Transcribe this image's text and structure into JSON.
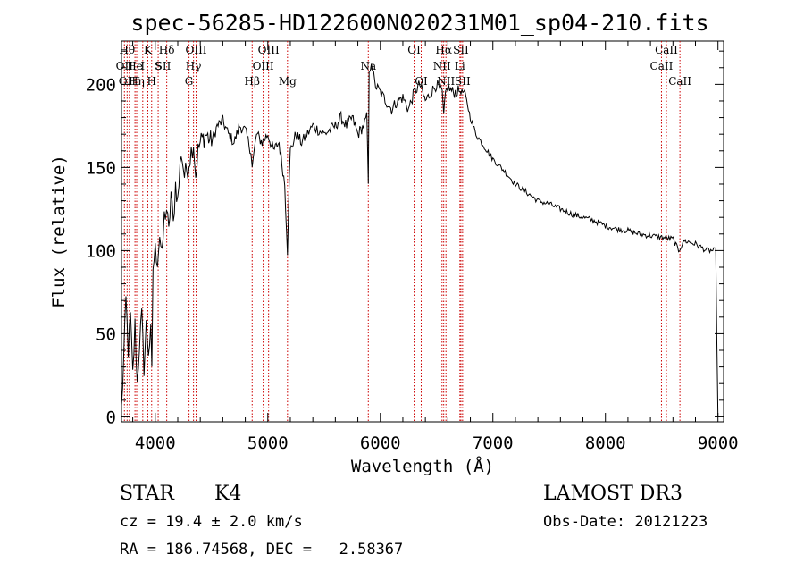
{
  "chart_data": {
    "type": "line",
    "title": "spec-56285-HD122600N020231M01_sp04-210.fits",
    "xlabel": "Wavelength (Å)",
    "ylabel": "Flux (relative)",
    "xlim": [
      3700,
      9050
    ],
    "ylim": [
      -3,
      226
    ],
    "xticks": [
      4000,
      5000,
      6000,
      7000,
      8000,
      9000
    ],
    "yticks": [
      0,
      50,
      100,
      150,
      200
    ],
    "grid": false,
    "series": [
      {
        "line_color": "#000000",
        "x": [
          3700,
          3720,
          3740,
          3760,
          3780,
          3800,
          3820,
          3840,
          3860,
          3880,
          3900,
          3920,
          3940,
          3960,
          3970,
          3980,
          4000,
          4020,
          4040,
          4060,
          4080,
          4100,
          4120,
          4140,
          4160,
          4180,
          4200,
          4230,
          4260,
          4290,
          4320,
          4340,
          4360,
          4380,
          4400,
          4450,
          4500,
          4550,
          4600,
          4650,
          4700,
          4750,
          4800,
          4850,
          4861,
          4900,
          4950,
          5000,
          5050,
          5100,
          5150,
          5175,
          5185,
          5200,
          5250,
          5300,
          5400,
          5500,
          5600,
          5650,
          5700,
          5750,
          5800,
          5850,
          5880,
          5893,
          5900,
          5920,
          5950,
          6000,
          6050,
          6100,
          6150,
          6200,
          6250,
          6300,
          6350,
          6400,
          6450,
          6500,
          6550,
          6563,
          6580,
          6600,
          6650,
          6700,
          6750,
          6800,
          6850,
          6900,
          6950,
          7000,
          7100,
          7200,
          7300,
          7400,
          7500,
          7600,
          7700,
          7800,
          7900,
          8000,
          8100,
          8200,
          8300,
          8400,
          8500,
          8600,
          8650,
          8700,
          8800,
          8900,
          8980,
          9000
        ],
        "y": [
          5,
          35,
          70,
          40,
          60,
          25,
          55,
          20,
          45,
          60,
          30,
          55,
          40,
          50,
          25,
          90,
          100,
          95,
          110,
          95,
          120,
          125,
          110,
          135,
          115,
          140,
          130,
          160,
          145,
          150,
          160,
          165,
          145,
          160,
          165,
          170,
          165,
          175,
          178,
          170,
          165,
          175,
          172,
          160,
          150,
          170,
          165,
          170,
          160,
          165,
          140,
          100,
          130,
          160,
          170,
          165,
          175,
          170,
          175,
          180,
          175,
          180,
          170,
          175,
          180,
          140,
          205,
          215,
          200,
          195,
          190,
          185,
          190,
          192,
          185,
          195,
          200,
          190,
          195,
          200,
          195,
          180,
          195,
          198,
          195,
          196,
          195,
          180,
          170,
          165,
          160,
          155,
          148,
          140,
          135,
          130,
          128,
          125,
          122,
          120,
          118,
          115,
          113,
          112,
          110,
          109,
          108,
          107,
          100,
          106,
          104,
          100,
          100,
          0
        ]
      }
    ],
    "line_markers": [
      {
        "wl": 3726,
        "label": "OII",
        "row": 2
      },
      {
        "wl": 3750,
        "label": "Hθ",
        "row": 1
      },
      {
        "wl": 3770,
        "label": "OIII",
        "row": 3
      },
      {
        "wl": 3820,
        "label": "He",
        "row": 2
      },
      {
        "wl": 3835,
        "label": "Hη",
        "row": 3
      },
      {
        "wl": 3889,
        "label": "I",
        "row": 2
      },
      {
        "wl": 3934,
        "label": "K",
        "row": 1
      },
      {
        "wl": 3968,
        "label": "H",
        "row": 3
      },
      {
        "wl": 4026,
        "label": "S",
        "row": 2
      },
      {
        "wl": 4069,
        "label": "SII",
        "row": 2
      },
      {
        "wl": 4102,
        "label": "Hδ",
        "row": 1
      },
      {
        "wl": 4300,
        "label": "G",
        "row": 3
      },
      {
        "wl": 4340,
        "label": "Hγ",
        "row": 2
      },
      {
        "wl": 4363,
        "label": "OIII",
        "row": 1
      },
      {
        "wl": 4861,
        "label": "Hβ",
        "row": 3
      },
      {
        "wl": 4959,
        "label": "OIII",
        "row": 2
      },
      {
        "wl": 5007,
        "label": "OIII",
        "row": 1
      },
      {
        "wl": 5175,
        "label": "Mg",
        "row": 3
      },
      {
        "wl": 5893,
        "label": "Na",
        "row": 2
      },
      {
        "wl": 6300,
        "label": "OI",
        "row": 1
      },
      {
        "wl": 6363,
        "label": "OI",
        "row": 3
      },
      {
        "wl": 6548,
        "label": "NII",
        "row": 2
      },
      {
        "wl": 6563,
        "label": "Hα",
        "row": 1
      },
      {
        "wl": 6583,
        "label": "NII",
        "row": 3
      },
      {
        "wl": 6707,
        "label": "Li",
        "row": 2
      },
      {
        "wl": 6716,
        "label": "SII",
        "row": 1
      },
      {
        "wl": 6731,
        "label": "SII",
        "row": 3
      },
      {
        "wl": 8498,
        "label": "CaII",
        "row": 2
      },
      {
        "wl": 8542,
        "label": "CaII",
        "row": 1
      },
      {
        "wl": 8662,
        "label": "CaII",
        "row": 3
      }
    ]
  },
  "info": {
    "class": "STAR",
    "subclass": "K4",
    "survey": "LAMOST DR3",
    "cz": "cz = 19.4 ± 2.0 km/s",
    "obs_date": "Obs-Date: 20121223",
    "radec": "RA = 186.74568, DEC =   2.58367"
  }
}
